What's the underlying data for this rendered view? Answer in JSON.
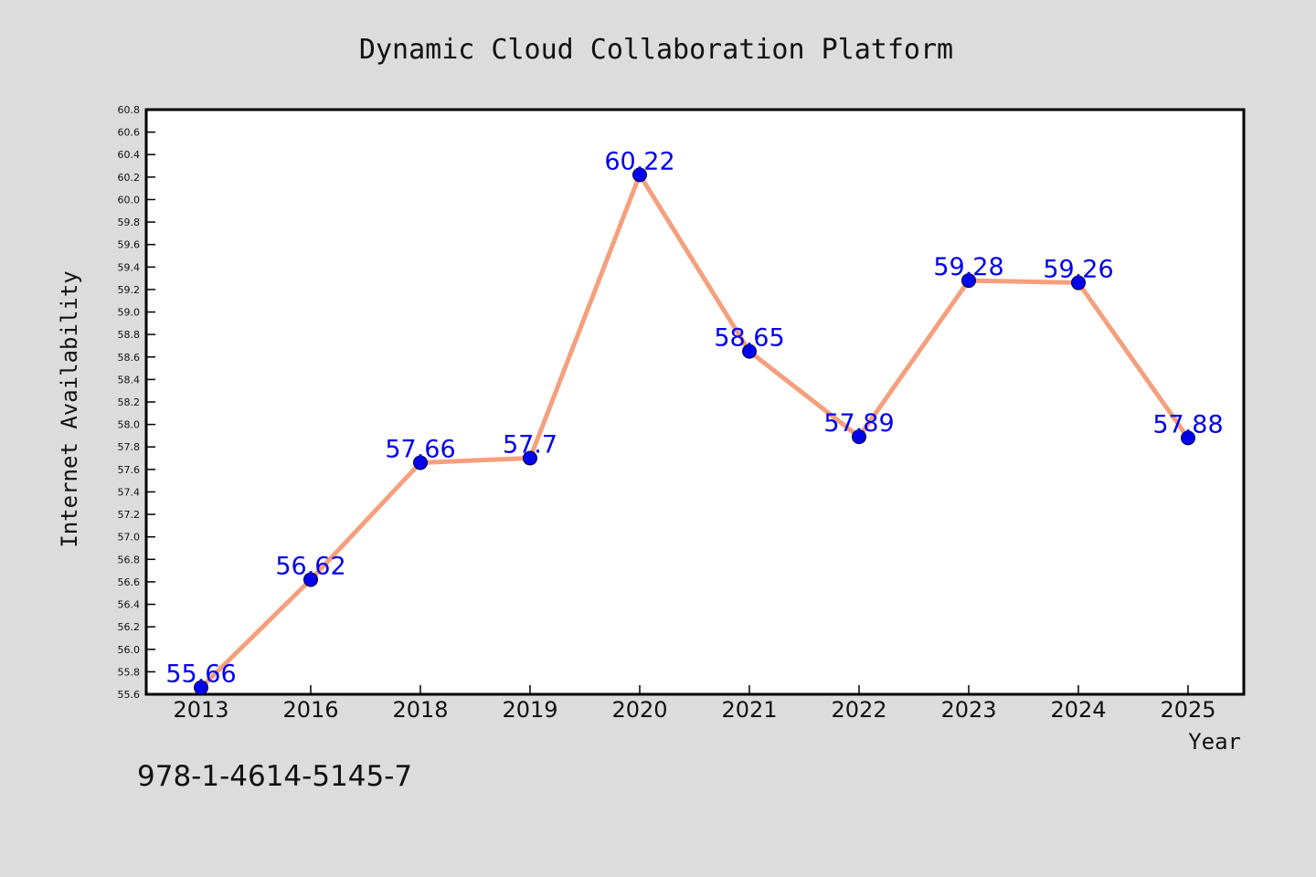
{
  "chart_data": {
    "type": "line",
    "title": "Dynamic Cloud Collaboration Platform",
    "xlabel": "Year",
    "ylabel": "Internet Availability",
    "categories": [
      "2013",
      "2016",
      "2018",
      "2019",
      "2020",
      "2021",
      "2022",
      "2023",
      "2024",
      "2025"
    ],
    "series": [
      {
        "values": [
          55.66,
          56.62,
          57.66,
          57.7,
          60.22,
          58.65,
          57.89,
          59.28,
          59.26,
          57.88
        ],
        "labels": [
          "55.66",
          "56.62",
          "57.66",
          "57.7",
          "60.22",
          "58.65",
          "57.89",
          "59.28",
          "59.26",
          "57.88"
        ]
      }
    ],
    "ylim": [
      55.6,
      60.8
    ],
    "yticks": [
      "55.6",
      "55.8",
      "56.0",
      "56.2",
      "56.4",
      "56.6",
      "56.8",
      "57.0",
      "57.2",
      "57.4",
      "57.6",
      "57.8",
      "58.0",
      "58.2",
      "58.4",
      "58.6",
      "58.8",
      "59.0",
      "59.2",
      "59.4",
      "59.6",
      "59.8",
      "60.0",
      "60.2",
      "60.4",
      "60.6",
      "60.8"
    ],
    "grid": false,
    "legend": "none",
    "line_color": "#f4a07e",
    "marker_color": "#0000ee",
    "label_color": "#0000ee"
  },
  "footer": {
    "code": "978-1-4614-5145-7"
  }
}
